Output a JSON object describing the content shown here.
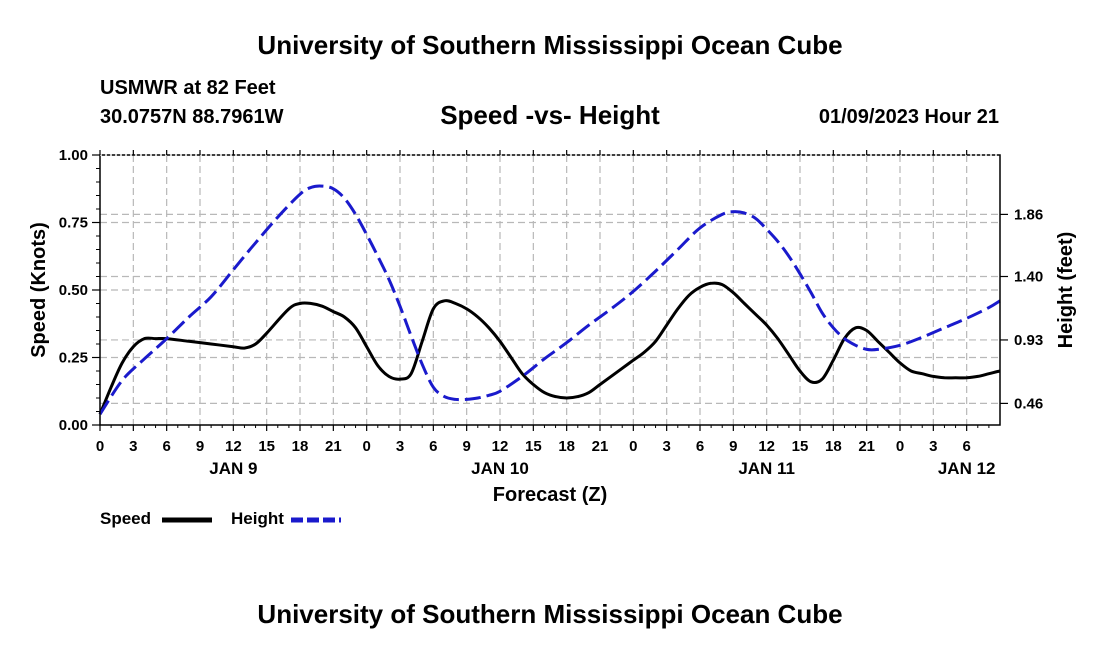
{
  "header": {
    "title": "University of Southern Mississippi Ocean Cube",
    "station": "USMWR at 82 Feet",
    "coordinates": "30.0757N  88.7961W",
    "datetime": "01/09/2023 Hour 21"
  },
  "footer": {
    "title": "University of Southern Mississippi Ocean Cube"
  },
  "legend": {
    "speed_label": "Speed",
    "height_label": "Height"
  },
  "colors": {
    "speed": "#000000",
    "height": "#1a1acc",
    "grid": "#b8b8b8"
  },
  "chart_data": {
    "type": "line",
    "title": "Speed -vs- Height",
    "xlabel": "Forecast (Z)",
    "ylabel": "Speed (Knots)",
    "y2label": "Height (feet)",
    "x_range_hours": [
      0,
      81
    ],
    "x_ticks": [
      {
        "h": 0,
        "label": "0"
      },
      {
        "h": 3,
        "label": "3"
      },
      {
        "h": 6,
        "label": "6"
      },
      {
        "h": 9,
        "label": "9"
      },
      {
        "h": 12,
        "label": "12"
      },
      {
        "h": 15,
        "label": "15"
      },
      {
        "h": 18,
        "label": "18"
      },
      {
        "h": 21,
        "label": "21"
      },
      {
        "h": 24,
        "label": "0"
      },
      {
        "h": 27,
        "label": "3"
      },
      {
        "h": 30,
        "label": "6"
      },
      {
        "h": 33,
        "label": "9"
      },
      {
        "h": 36,
        "label": "12"
      },
      {
        "h": 39,
        "label": "15"
      },
      {
        "h": 42,
        "label": "18"
      },
      {
        "h": 45,
        "label": "21"
      },
      {
        "h": 48,
        "label": "0"
      },
      {
        "h": 51,
        "label": "3"
      },
      {
        "h": 54,
        "label": "6"
      },
      {
        "h": 57,
        "label": "9"
      },
      {
        "h": 60,
        "label": "12"
      },
      {
        "h": 63,
        "label": "15"
      },
      {
        "h": 66,
        "label": "18"
      },
      {
        "h": 69,
        "label": "21"
      },
      {
        "h": 72,
        "label": "0"
      },
      {
        "h": 75,
        "label": "3"
      },
      {
        "h": 78,
        "label": "6"
      }
    ],
    "date_labels": [
      {
        "h": 12,
        "label": "JAN 9"
      },
      {
        "h": 36,
        "label": "JAN 10"
      },
      {
        "h": 60,
        "label": "JAN 11"
      },
      {
        "h": 78,
        "label": "JAN 12"
      }
    ],
    "y_range": [
      0,
      1
    ],
    "y_ticks": [
      {
        "v": 0,
        "label": "0.00"
      },
      {
        "v": 0.25,
        "label": "0.25"
      },
      {
        "v": 0.5,
        "label": "0.50"
      },
      {
        "v": 0.75,
        "label": "0.75"
      },
      {
        "v": 1,
        "label": "1.00"
      }
    ],
    "y2_range": [
      0.3,
      2.3
    ],
    "y2_ticks": [
      {
        "v": 0.46,
        "label": "0.46"
      },
      {
        "v": 0.93,
        "label": "0.93"
      },
      {
        "v": 1.4,
        "label": "1.40"
      },
      {
        "v": 1.86,
        "label": "1.86"
      }
    ],
    "series": [
      {
        "name": "Speed",
        "axis": "left",
        "style": "solid",
        "x": [
          0,
          1,
          2,
          3,
          4,
          5,
          6,
          8,
          10,
          12,
          13,
          14,
          15,
          17,
          18,
          19,
          20,
          21,
          22,
          23,
          24,
          25,
          26,
          27,
          28,
          29,
          30,
          31,
          32,
          33,
          34,
          35,
          36,
          37,
          38,
          39,
          40,
          41,
          42,
          43,
          44,
          45,
          46,
          47,
          48,
          49,
          50,
          51,
          52,
          53,
          54,
          55,
          56,
          57,
          58,
          59,
          60,
          61,
          62,
          63,
          64,
          65,
          66,
          67,
          68,
          69,
          70,
          71,
          72,
          73,
          74,
          75,
          76,
          77,
          78,
          79,
          80,
          81
        ],
        "values": [
          0.04,
          0.14,
          0.23,
          0.29,
          0.32,
          0.32,
          0.32,
          0.31,
          0.3,
          0.29,
          0.285,
          0.3,
          0.34,
          0.43,
          0.45,
          0.45,
          0.44,
          0.42,
          0.4,
          0.36,
          0.29,
          0.22,
          0.18,
          0.17,
          0.19,
          0.31,
          0.43,
          0.46,
          0.45,
          0.43,
          0.4,
          0.36,
          0.31,
          0.25,
          0.19,
          0.15,
          0.12,
          0.105,
          0.1,
          0.105,
          0.12,
          0.15,
          0.18,
          0.21,
          0.24,
          0.27,
          0.31,
          0.37,
          0.43,
          0.48,
          0.51,
          0.525,
          0.52,
          0.49,
          0.45,
          0.41,
          0.37,
          0.32,
          0.26,
          0.2,
          0.16,
          0.17,
          0.24,
          0.32,
          0.36,
          0.35,
          0.31,
          0.27,
          0.23,
          0.2,
          0.19,
          0.18,
          0.175,
          0.175,
          0.175,
          0.18,
          0.19,
          0.2
        ]
      },
      {
        "name": "Height",
        "axis": "right",
        "style": "dashed",
        "x": [
          0,
          2,
          4,
          6,
          8,
          10,
          12,
          14,
          16,
          18,
          19,
          20,
          21,
          22,
          23,
          24,
          25,
          26,
          27,
          28,
          29,
          30,
          31,
          32,
          33,
          34,
          35,
          36,
          38,
          40,
          42,
          44,
          46,
          48,
          50,
          52,
          54,
          56,
          57,
          58,
          59,
          60,
          61,
          62,
          63,
          64,
          65,
          66,
          67,
          68,
          69,
          70,
          72,
          74,
          76,
          78,
          80,
          81
        ],
        "values": [
          0.38,
          0.63,
          0.79,
          0.94,
          1.1,
          1.25,
          1.45,
          1.65,
          1.84,
          2.01,
          2.06,
          2.07,
          2.05,
          1.98,
          1.86,
          1.71,
          1.55,
          1.38,
          1.18,
          0.96,
          0.75,
          0.58,
          0.51,
          0.49,
          0.49,
          0.5,
          0.52,
          0.55,
          0.66,
          0.79,
          0.91,
          1.04,
          1.16,
          1.29,
          1.44,
          1.6,
          1.76,
          1.86,
          1.88,
          1.87,
          1.83,
          1.75,
          1.66,
          1.55,
          1.42,
          1.28,
          1.13,
          1.02,
          0.94,
          0.89,
          0.86,
          0.86,
          0.89,
          0.95,
          1.02,
          1.09,
          1.17,
          1.22
        ]
      }
    ]
  }
}
